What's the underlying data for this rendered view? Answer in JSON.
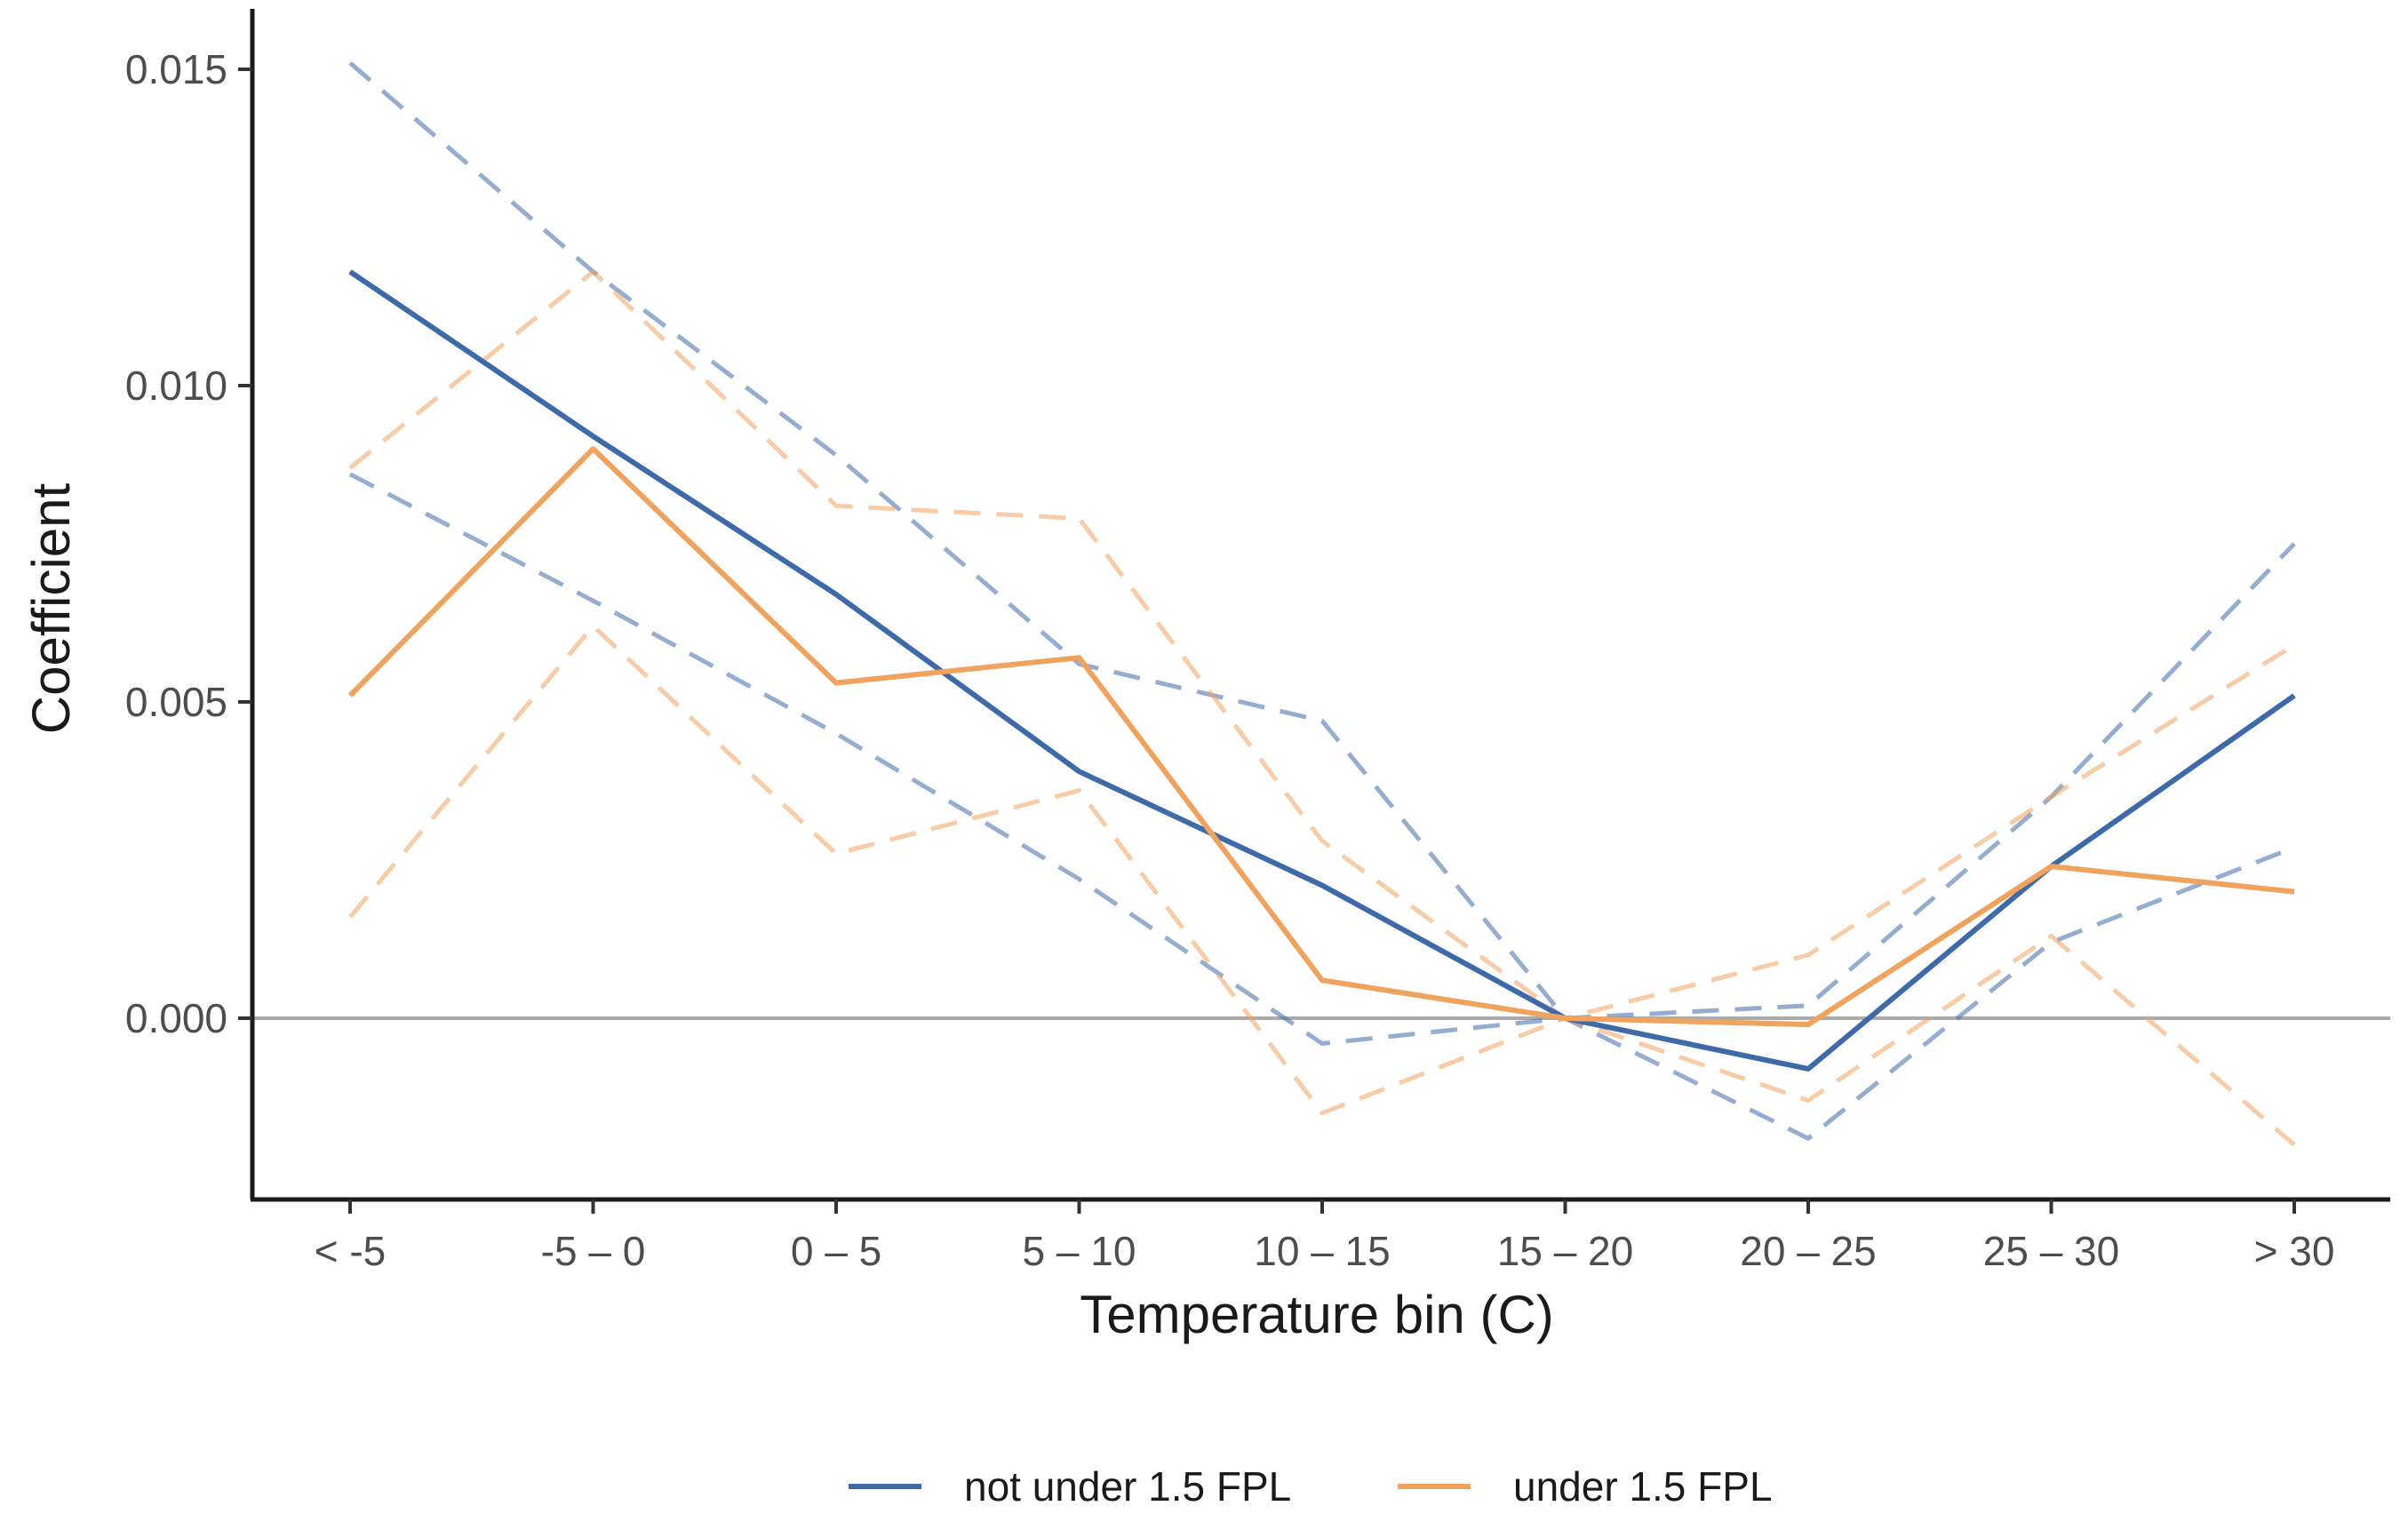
{
  "chart_data": {
    "type": "line",
    "title": "",
    "xlabel": "Temperature bin (C)",
    "ylabel": "Coefficient",
    "categories": [
      "< -5",
      "-5 – 0",
      "0 – 5",
      "5 – 10",
      "10 – 15",
      "15 – 20",
      "20 – 25",
      "25 – 30",
      "> 30"
    ],
    "yticks": [
      0.0,
      0.005,
      0.01,
      0.015
    ],
    "ytick_labels": [
      "0.000",
      "0.005",
      "0.010",
      "0.015"
    ],
    "ylim": [
      -0.0028,
      0.0162
    ],
    "reference_line": 0,
    "grid": false,
    "legend_position": "bottom",
    "series": [
      {
        "name": "not under 1.5 FPL",
        "color": "#3e6aa8",
        "values": [
          0.0118,
          0.0092,
          0.0067,
          0.0039,
          0.0021,
          0.0,
          -0.0008,
          0.0024,
          0.0051
        ],
        "ci_upper": [
          0.0151,
          0.0118,
          0.0089,
          0.0056,
          0.0047,
          0.0,
          0.0002,
          0.0035,
          0.0075
        ],
        "ci_lower": [
          0.0086,
          0.0066,
          0.0045,
          0.0022,
          -0.0004,
          0.0,
          -0.0019,
          0.0012,
          0.0027
        ]
      },
      {
        "name": "under 1.5 FPL",
        "color": "#f0a35e",
        "values": [
          0.0051,
          0.009,
          0.0053,
          0.0057,
          0.0006,
          0.0,
          -0.0001,
          0.0024,
          0.002
        ],
        "ci_upper": [
          0.0087,
          0.0118,
          0.0081,
          0.0079,
          0.0028,
          0.0,
          0.001,
          0.0035,
          0.0059
        ],
        "ci_lower": [
          0.0016,
          0.0062,
          0.0026,
          0.0036,
          -0.0015,
          0.0,
          -0.0013,
          0.0013,
          -0.002
        ]
      }
    ]
  }
}
